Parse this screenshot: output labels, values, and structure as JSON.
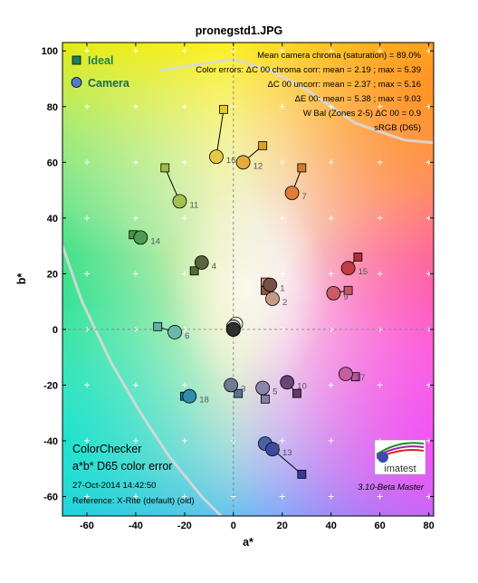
{
  "chart_data": {
    "type": "scatter",
    "title": "pronegstd1.JPG",
    "xlabel": "a*",
    "ylabel": "b*",
    "xlim": [
      -70,
      82
    ],
    "ylim": [
      -67,
      103
    ],
    "xticks": [
      -60,
      -40,
      -20,
      0,
      20,
      40,
      60,
      80
    ],
    "yticks": [
      -60,
      -40,
      -20,
      0,
      20,
      40,
      60,
      80,
      100
    ],
    "grid": true,
    "legend": {
      "placement": "top-left",
      "entries": [
        {
          "label": "Ideal",
          "marker": "square",
          "color": "#1e7f5c"
        },
        {
          "label": "Camera",
          "marker": "circle",
          "color": "#4a7fcc"
        }
      ]
    },
    "stats": [
      "Mean camera chroma (saturation) = 89.0%",
      "Color errors: ΔC 00 chroma corr:  mean = 2.19 ;  max = 5.39",
      "ΔC 00 uncorr:  mean = 2.37 ;  max = 5.16",
      "ΔE 00:  mean = 5.38 ;  max = 9.03",
      "W Bal (Zones 2-5) ΔC 00 = 0.9",
      "sRGB (D65)"
    ],
    "footer": {
      "title": "ColorChecker",
      "subtitle": "a*b* D65 color error",
      "date": "27-Oct-2014 14:42:50",
      "reference": "Reference: X-Rite (default) (old)",
      "version": "3.10-Beta  Master",
      "logo_text": "imatest"
    },
    "gamut_curve": [
      {
        "a": -70,
        "b": 30
      },
      {
        "a": -62,
        "b": 10
      },
      {
        "a": -50,
        "b": -12
      },
      {
        "a": -38,
        "b": -30
      },
      {
        "a": -26,
        "b": -46
      },
      {
        "a": -13,
        "b": -60
      },
      {
        "a": -5,
        "b": -67
      }
    ],
    "gamut_curve_upper": [
      {
        "a": -30,
        "b": 93
      },
      {
        "a": -15,
        "b": 95
      },
      {
        "a": 0,
        "b": 97
      },
      {
        "a": 15,
        "b": 93
      },
      {
        "a": 30,
        "b": 86
      },
      {
        "a": 50,
        "b": 74
      },
      {
        "a": 70,
        "b": 68
      },
      {
        "a": 82,
        "b": 67
      }
    ],
    "patches": [
      {
        "id": "1",
        "ideal": [
          13,
          14
        ],
        "camera": [
          15,
          16
        ],
        "ideal_color": "#8a5a48",
        "camera_color": "#7a4e42"
      },
      {
        "id": "2",
        "ideal": [
          13,
          17
        ],
        "camera": [
          16,
          11
        ],
        "ideal_color": "#c7907a",
        "camera_color": "#c89a86"
      },
      {
        "id": "3",
        "ideal": [
          2,
          -23
        ],
        "camera": [
          -1,
          -20
        ],
        "ideal_color": "#5b7296",
        "camera_color": "#6f7c94"
      },
      {
        "id": "4",
        "ideal": [
          -16,
          21
        ],
        "camera": [
          -13,
          24
        ],
        "ideal_color": "#566a34",
        "camera_color": "#55663a"
      },
      {
        "id": "5",
        "ideal": [
          13,
          -25
        ],
        "camera": [
          12,
          -21
        ],
        "ideal_color": "#8180aa",
        "camera_color": "#8c86aa"
      },
      {
        "id": "6",
        "ideal": [
          -31,
          1
        ],
        "camera": [
          -24,
          -1
        ],
        "ideal_color": "#5fb2a6",
        "camera_color": "#6cb8aa"
      },
      {
        "id": "7",
        "ideal": [
          28,
          58
        ],
        "camera": [
          24,
          49
        ],
        "ideal_color": "#d57a2a",
        "camera_color": "#e07c36"
      },
      {
        "id": "8",
        "ideal": [
          16,
          -43
        ],
        "camera": [
          13,
          -41
        ],
        "ideal_color": "#495ba2",
        "camera_color": "#4a62a8"
      },
      {
        "id": "9",
        "ideal": [
          47,
          14
        ],
        "camera": [
          41,
          13
        ],
        "ideal_color": "#c05a62",
        "camera_color": "#c95c66"
      },
      {
        "id": "10",
        "ideal": [
          26,
          -23
        ],
        "camera": [
          22,
          -19
        ],
        "ideal_color": "#5e3c6c",
        "camera_color": "#684478"
      },
      {
        "id": "11",
        "ideal": [
          -28,
          58
        ],
        "camera": [
          -22,
          46
        ],
        "ideal_color": "#9fbc40",
        "camera_color": "#a6bf52"
      },
      {
        "id": "12",
        "ideal": [
          12,
          66
        ],
        "camera": [
          4,
          60
        ],
        "ideal_color": "#e09e2a",
        "camera_color": "#e6aa3a"
      },
      {
        "id": "13",
        "ideal": [
          28,
          -52
        ],
        "camera": [
          16,
          -43
        ],
        "ideal_color": "#333c90",
        "camera_color": "#3e4aa0"
      },
      {
        "id": "14",
        "ideal": [
          -41,
          34
        ],
        "camera": [
          -38,
          33
        ],
        "ideal_color": "#45954a",
        "camera_color": "#4d9c52"
      },
      {
        "id": "15",
        "ideal": [
          51,
          26
        ],
        "camera": [
          47,
          22
        ],
        "ideal_color": "#b02e36",
        "camera_color": "#c43c44"
      },
      {
        "id": "16",
        "ideal": [
          -4,
          79
        ],
        "camera": [
          -7,
          62
        ],
        "ideal_color": "#e8c72a",
        "camera_color": "#e4c846"
      },
      {
        "id": "17",
        "ideal": [
          50,
          -17
        ],
        "camera": [
          46,
          -16
        ],
        "ideal_color": "#ba5498",
        "camera_color": "#c260a2"
      },
      {
        "id": "18",
        "ideal": [
          -20,
          -24
        ],
        "camera": [
          -18,
          -24
        ],
        "ideal_color": "#0a86a2",
        "camera_color": "#2e8cb0"
      },
      {
        "id": "",
        "ideal": [
          0,
          0
        ],
        "camera": [
          1,
          2
        ],
        "ideal_color": "#f2f2f2",
        "camera_color": "#f0f0f0"
      },
      {
        "id": "",
        "ideal": [
          0,
          0
        ],
        "camera": [
          0,
          1
        ],
        "ideal_color": "#c8c8c8",
        "camera_color": "#c4c4c4"
      },
      {
        "id": "",
        "ideal": [
          0,
          0
        ],
        "camera": [
          0,
          0
        ],
        "ideal_color": "#a0a0a0",
        "camera_color": "#9c9c9c"
      },
      {
        "id": "",
        "ideal": [
          0,
          0
        ],
        "camera": [
          0,
          0
        ],
        "ideal_color": "#7a7a7a",
        "camera_color": "#767676"
      },
      {
        "id": "",
        "ideal": [
          0,
          0
        ],
        "camera": [
          0,
          0
        ],
        "ideal_color": "#555555",
        "camera_color": "#525252"
      },
      {
        "id": "",
        "ideal": [
          0,
          0
        ],
        "camera": [
          0,
          0
        ],
        "ideal_color": "#343434",
        "camera_color": "#303030"
      }
    ]
  }
}
